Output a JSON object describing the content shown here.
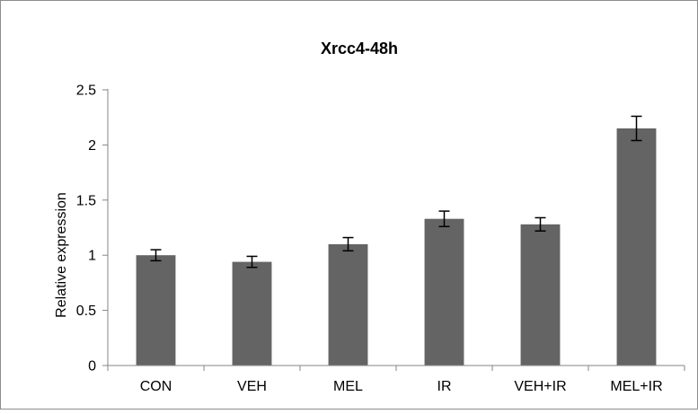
{
  "chart_data": {
    "type": "bar",
    "title": "Xrcc4-48h",
    "xlabel": "",
    "ylabel": "Relative expression",
    "categories": [
      "CON",
      "VEH",
      "MEL",
      "IR",
      "VEH+IR",
      "MEL+IR"
    ],
    "values": [
      1.0,
      0.94,
      1.1,
      1.33,
      1.28,
      2.15
    ],
    "errors": [
      0.05,
      0.05,
      0.06,
      0.07,
      0.06,
      0.11
    ],
    "ylim": [
      0,
      2.5
    ],
    "yticks": [
      0,
      0.5,
      1,
      1.5,
      2,
      2.5
    ],
    "ytick_labels": [
      "0",
      "0.5",
      "1",
      "1.5",
      "2",
      "2.5"
    ],
    "grid": false,
    "legend": "none",
    "bar_color": "#646464"
  }
}
